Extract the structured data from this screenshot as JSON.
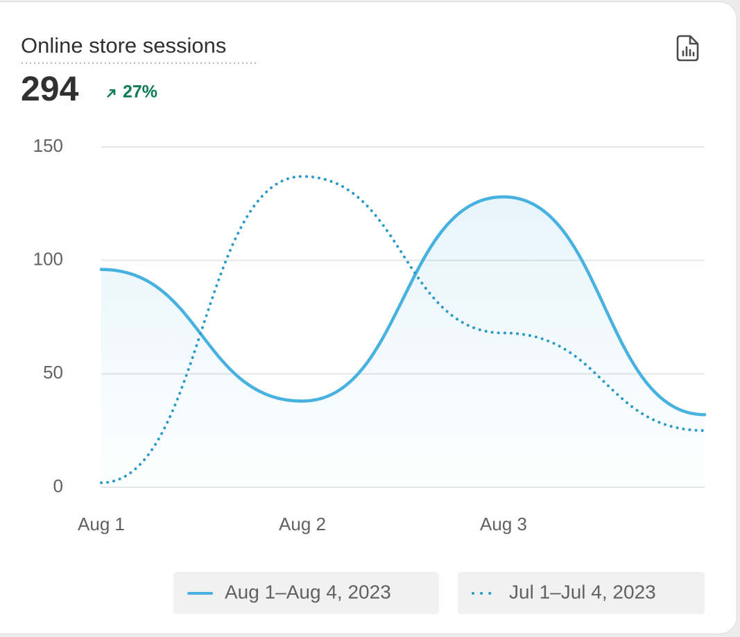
{
  "header": {
    "title": "Online store sessions",
    "total": "294",
    "change": "27%"
  },
  "chart_data": {
    "type": "line",
    "categories": [
      "Aug 1",
      "Aug 2",
      "Aug 3",
      null
    ],
    "series": [
      {
        "name": "Aug 1–Aug 4, 2023",
        "color": "#47b1e0",
        "style": "solid",
        "area": true,
        "values": [
          96,
          38,
          128,
          32
        ]
      },
      {
        "name": "Jul 1–Jul 4, 2023",
        "color": "#2a9ac6",
        "style": "dotted",
        "area": false,
        "values": [
          2,
          137,
          68,
          25
        ]
      }
    ],
    "ylim": [
      0,
      150
    ],
    "yticks": [
      0,
      50,
      100,
      150
    ],
    "grid": true,
    "legend": "bottom"
  }
}
